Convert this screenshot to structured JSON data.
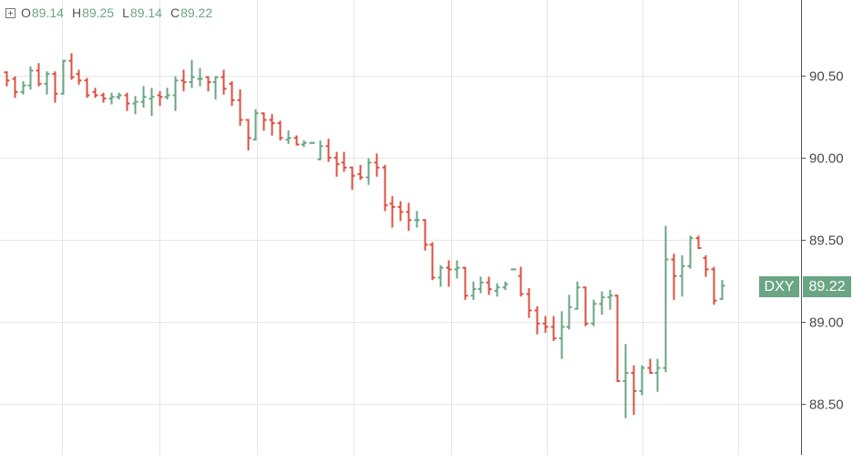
{
  "legend": {
    "open_label": "O",
    "open": "89.14",
    "high_label": "H",
    "high": "89.25",
    "low_label": "L",
    "low": "89.14",
    "close_label": "C",
    "close": "89.22",
    "icon": "plus-square-icon"
  },
  "price_tag": {
    "symbol": "DXY",
    "price": "89.22"
  },
  "colors": {
    "up": "#6aa584",
    "down": "#dc5040",
    "grid": "#e6e6e6",
    "axis": "#555555"
  },
  "chart_data": {
    "type": "ohlc",
    "symbol": "DXY",
    "ylim": [
      88.19,
      90.96
    ],
    "y_ticks": [
      "88.50",
      "89.00",
      "89.50",
      "90.00",
      "90.50"
    ],
    "grid": true,
    "ohlc": [
      [
        90.52,
        90.52,
        90.44,
        90.47
      ],
      [
        90.48,
        90.49,
        90.37,
        90.4
      ],
      [
        90.4,
        90.46,
        90.39,
        90.44
      ],
      [
        90.44,
        90.55,
        90.42,
        90.53
      ],
      [
        90.53,
        90.57,
        90.44,
        90.45
      ],
      [
        90.45,
        90.52,
        90.39,
        90.51
      ],
      [
        90.51,
        90.52,
        90.34,
        90.39
      ],
      [
        90.39,
        90.59,
        90.39,
        90.59
      ],
      [
        90.59,
        90.63,
        90.48,
        90.49
      ],
      [
        90.51,
        90.53,
        90.45,
        90.47
      ],
      [
        90.47,
        90.48,
        90.37,
        90.38
      ],
      [
        90.4,
        90.42,
        90.37,
        90.38
      ],
      [
        90.38,
        90.39,
        90.34,
        90.36
      ],
      [
        90.36,
        90.39,
        90.33,
        90.37
      ],
      [
        90.37,
        90.39,
        90.36,
        90.38
      ],
      [
        90.38,
        90.39,
        90.29,
        90.33
      ],
      [
        90.33,
        90.37,
        90.27,
        90.34
      ],
      [
        90.34,
        90.43,
        90.31,
        90.37
      ],
      [
        90.36,
        90.42,
        90.26,
        90.37
      ],
      [
        90.38,
        90.4,
        90.32,
        90.37
      ],
      [
        90.37,
        90.42,
        90.36,
        90.38
      ],
      [
        90.38,
        90.49,
        90.29,
        90.47
      ],
      [
        90.47,
        90.53,
        90.41,
        90.46
      ],
      [
        90.46,
        90.59,
        90.43,
        90.49
      ],
      [
        90.48,
        90.54,
        90.44,
        90.48
      ],
      [
        90.49,
        90.49,
        90.41,
        90.46
      ],
      [
        90.46,
        90.49,
        90.36,
        90.49
      ],
      [
        90.49,
        90.53,
        90.39,
        90.42
      ],
      [
        90.45,
        90.46,
        90.32,
        90.35
      ],
      [
        90.35,
        90.41,
        90.2,
        90.23
      ],
      [
        90.23,
        90.23,
        90.05,
        90.12
      ],
      [
        90.11,
        90.29,
        90.11,
        90.27
      ],
      [
        90.27,
        90.27,
        90.17,
        90.23
      ],
      [
        90.23,
        90.26,
        90.14,
        90.21
      ],
      [
        90.21,
        90.22,
        90.11,
        90.12
      ],
      [
        90.11,
        90.16,
        90.09,
        90.12
      ],
      [
        90.12,
        90.13,
        90.08,
        90.08
      ],
      [
        90.08,
        90.1,
        90.07,
        90.09
      ],
      [
        90.09,
        90.09,
        90.09,
        90.09
      ],
      [
        89.99,
        90.1,
        89.99,
        90.07
      ],
      [
        90.07,
        90.11,
        89.98,
        90.0
      ],
      [
        90.0,
        90.03,
        89.89,
        89.96
      ],
      [
        89.97,
        90.03,
        89.92,
        89.94
      ],
      [
        89.94,
        89.94,
        89.81,
        89.89
      ],
      [
        89.9,
        89.95,
        89.87,
        89.88
      ],
      [
        89.88,
        89.99,
        89.84,
        89.97
      ],
      [
        89.97,
        90.02,
        89.89,
        89.94
      ],
      [
        89.94,
        89.95,
        89.68,
        89.71
      ],
      [
        89.72,
        89.76,
        89.58,
        89.7
      ],
      [
        89.7,
        89.73,
        89.62,
        89.67
      ],
      [
        89.67,
        89.72,
        89.56,
        89.62
      ],
      [
        89.62,
        89.67,
        89.58,
        89.62
      ],
      [
        89.62,
        89.62,
        89.44,
        89.47
      ],
      [
        89.47,
        89.48,
        89.26,
        89.27
      ],
      [
        89.27,
        89.34,
        89.22,
        89.33
      ],
      [
        89.33,
        89.37,
        89.22,
        89.32
      ],
      [
        89.32,
        89.37,
        89.27,
        89.33
      ],
      [
        89.33,
        89.33,
        89.14,
        89.16
      ],
      [
        89.16,
        89.24,
        89.14,
        89.2
      ],
      [
        89.2,
        89.27,
        89.18,
        89.24
      ],
      [
        89.24,
        89.27,
        89.17,
        89.2
      ],
      [
        89.19,
        89.23,
        89.16,
        89.21
      ],
      [
        89.21,
        89.24,
        89.2,
        89.23
      ],
      [
        89.32,
        89.32,
        89.32,
        89.32
      ],
      [
        89.28,
        89.33,
        89.16,
        89.17
      ],
      [
        89.17,
        89.2,
        89.03,
        89.07
      ],
      [
        89.07,
        89.09,
        88.93,
        88.99
      ],
      [
        88.99,
        89.03,
        88.94,
        88.97
      ],
      [
        88.97,
        89.03,
        88.89,
        88.9
      ],
      [
        88.9,
        89.06,
        88.78,
        88.97
      ],
      [
        88.97,
        89.16,
        88.96,
        89.09
      ],
      [
        89.08,
        89.24,
        89.08,
        89.21
      ],
      [
        89.21,
        89.21,
        88.98,
        88.99
      ],
      [
        88.99,
        89.13,
        88.98,
        89.11
      ],
      [
        89.11,
        89.18,
        89.05,
        89.15
      ],
      [
        89.15,
        89.19,
        89.08,
        89.16
      ],
      [
        89.16,
        89.16,
        88.64,
        88.64
      ],
      [
        88.64,
        88.86,
        88.42,
        88.69
      ],
      [
        88.69,
        88.73,
        88.44,
        88.58
      ],
      [
        88.58,
        88.73,
        88.56,
        88.72
      ],
      [
        88.72,
        88.77,
        88.69,
        88.69
      ],
      [
        88.69,
        88.77,
        88.58,
        88.72
      ],
      [
        88.72,
        89.58,
        88.7,
        89.38
      ],
      [
        89.38,
        89.41,
        89.14,
        89.28
      ],
      [
        89.28,
        89.4,
        89.16,
        89.34
      ],
      [
        89.34,
        89.52,
        89.33,
        89.51
      ],
      [
        89.51,
        89.52,
        89.45,
        89.45
      ],
      [
        89.39,
        89.4,
        89.28,
        89.32
      ],
      [
        89.32,
        89.33,
        89.11,
        89.13
      ],
      [
        89.14,
        89.25,
        89.14,
        89.22
      ]
    ]
  }
}
